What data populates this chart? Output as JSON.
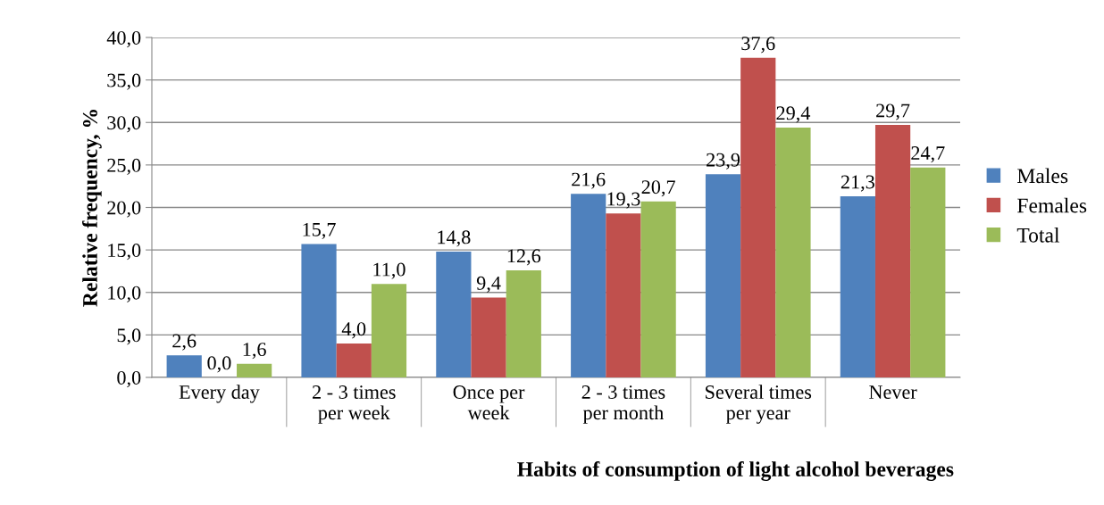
{
  "chart_data": {
    "type": "bar",
    "xlabel": "Habits of consumption of light alcohol beverages",
    "ylabel": "Relative frequency, %",
    "categories": [
      "Every day",
      "2 - 3 times\nper week",
      "Once per\nweek",
      "2 - 3 times\nper month",
      "Several times\nper year",
      "Never"
    ],
    "series": [
      {
        "name": "Males",
        "color": "#4f81bd",
        "values": [
          2.6,
          15.7,
          14.8,
          21.6,
          23.9,
          21.3
        ],
        "value_labels": [
          "2,6",
          "15,7",
          "14,8",
          "21,6",
          "23,9",
          "21,3"
        ]
      },
      {
        "name": "Females",
        "color": "#c0504d",
        "values": [
          0.0,
          4.0,
          9.4,
          19.3,
          37.6,
          29.7
        ],
        "value_labels": [
          "0,0",
          "4,0",
          "9,4",
          "19,3",
          "37,6",
          "29,7"
        ]
      },
      {
        "name": "Total",
        "color": "#9bbb59",
        "values": [
          1.6,
          11.0,
          12.6,
          20.7,
          29.4,
          24.7
        ],
        "value_labels": [
          "1,6",
          "11,0",
          "12,6",
          "20,7",
          "29,4",
          "24,7"
        ]
      }
    ],
    "ylim": [
      0,
      40
    ],
    "yticks": [
      {
        "value": 0,
        "label": "0,0"
      },
      {
        "value": 5,
        "label": "5,0"
      },
      {
        "value": 10,
        "label": "10,0"
      },
      {
        "value": 15,
        "label": "15,0"
      },
      {
        "value": 20,
        "label": "20,0"
      },
      {
        "value": 25,
        "label": "25,0"
      },
      {
        "value": 30,
        "label": "30,0"
      },
      {
        "value": 35,
        "label": "35,0"
      },
      {
        "value": 40,
        "label": "40,0"
      }
    ],
    "grid": "y",
    "legend": "right"
  }
}
